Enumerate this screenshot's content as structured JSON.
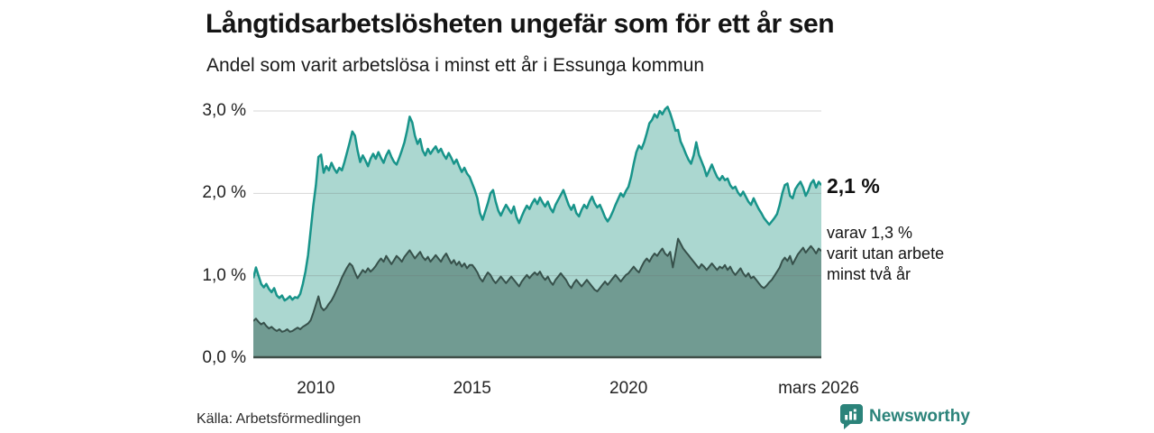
{
  "header": {
    "title": "Långtidsarbetslösheten ungefär som för ett år sen",
    "subtitle": "Andel som varit arbetslösa i minst ett år i Essunga kommun"
  },
  "annotations": {
    "total_label": "2,1 %",
    "subset_lines": [
      "varav 1,3 %",
      "varit utan arbete",
      "minst två år"
    ]
  },
  "footer": {
    "source": "Källa: Arbetsförmedlingen",
    "brand": "Newsworthy",
    "brand_icon": "newsworthy-chart-bubble-icon"
  },
  "colors": {
    "teal_line": "#18948a",
    "teal_fill": "#abd7d0",
    "dark_line": "#37514b",
    "dark_fill": "#719b92",
    "grid": "#9a9a9a",
    "axis": "#3f4e48",
    "brand": "#2b837a",
    "text": "#1a1a1a"
  },
  "chart_data": {
    "type": "area",
    "title": "Långtidsarbetslösheten ungefär som för ett år sen",
    "subtitle": "Andel som varit arbetslösa i minst ett år i Essunga kommun",
    "xlabel": "",
    "ylabel": "",
    "unit": "%",
    "xlim": [
      2008.0,
      2026.1667
    ],
    "ylim": [
      0,
      3.2
    ],
    "grid": "horizontal",
    "legend_position": "right-of-line-end",
    "x_start": 2008.0,
    "x_step": 0.0833333,
    "x_ticks": [
      {
        "label": "2010",
        "t": 2010.0
      },
      {
        "label": "2015",
        "t": 2015.0
      },
      {
        "label": "2020",
        "t": 2020.0
      },
      {
        "label": "mars 2026",
        "t": 2026.1667
      }
    ],
    "y_ticks": [
      {
        "label": "0,0 %",
        "v": 0.0
      },
      {
        "label": "1,0 %",
        "v": 1.0
      },
      {
        "label": "2,0 %",
        "v": 2.0
      },
      {
        "label": "3,0 %",
        "v": 3.0
      }
    ],
    "series": [
      {
        "name": "Andel som varit arbetslösa i minst ett år",
        "end_label": "2,1 %",
        "end_value": 2.1,
        "line_color": "#18948a",
        "fill_color": "#abd7d0",
        "line_width": 2.5,
        "values": [
          0.97,
          1.1,
          1.0,
          0.9,
          0.86,
          0.9,
          0.84,
          0.8,
          0.85,
          0.76,
          0.73,
          0.76,
          0.7,
          0.72,
          0.75,
          0.71,
          0.74,
          0.73,
          0.78,
          0.9,
          1.05,
          1.25,
          1.55,
          1.85,
          2.1,
          2.44,
          2.47,
          2.25,
          2.33,
          2.28,
          2.37,
          2.3,
          2.25,
          2.31,
          2.28,
          2.38,
          2.5,
          2.62,
          2.75,
          2.7,
          2.52,
          2.38,
          2.46,
          2.4,
          2.33,
          2.42,
          2.48,
          2.42,
          2.5,
          2.43,
          2.37,
          2.46,
          2.52,
          2.44,
          2.38,
          2.35,
          2.43,
          2.52,
          2.62,
          2.76,
          2.93,
          2.86,
          2.7,
          2.6,
          2.66,
          2.52,
          2.46,
          2.54,
          2.48,
          2.53,
          2.57,
          2.5,
          2.54,
          2.47,
          2.42,
          2.49,
          2.43,
          2.36,
          2.41,
          2.33,
          2.26,
          2.31,
          2.24,
          2.2,
          2.12,
          2.04,
          1.94,
          1.76,
          1.68,
          1.78,
          1.88,
          2.0,
          2.04,
          1.9,
          1.79,
          1.73,
          1.8,
          1.86,
          1.81,
          1.76,
          1.84,
          1.71,
          1.64,
          1.72,
          1.79,
          1.85,
          1.81,
          1.88,
          1.93,
          1.87,
          1.95,
          1.89,
          1.84,
          1.9,
          1.82,
          1.77,
          1.86,
          1.92,
          1.98,
          2.04,
          1.95,
          1.86,
          1.8,
          1.86,
          1.76,
          1.72,
          1.8,
          1.86,
          1.82,
          1.9,
          1.96,
          1.88,
          1.83,
          1.86,
          1.79,
          1.71,
          1.66,
          1.71,
          1.78,
          1.86,
          1.93,
          2.0,
          1.96,
          2.03,
          2.08,
          2.2,
          2.36,
          2.5,
          2.58,
          2.54,
          2.62,
          2.73,
          2.85,
          2.89,
          2.96,
          2.92,
          3.0,
          2.96,
          3.02,
          3.05,
          2.97,
          2.87,
          2.76,
          2.77,
          2.63,
          2.56,
          2.48,
          2.41,
          2.36,
          2.46,
          2.62,
          2.47,
          2.39,
          2.31,
          2.21,
          2.28,
          2.35,
          2.27,
          2.2,
          2.16,
          2.21,
          2.16,
          2.18,
          2.1,
          2.06,
          2.08,
          2.01,
          1.97,
          2.02,
          1.96,
          1.9,
          1.86,
          1.94,
          1.87,
          1.81,
          1.76,
          1.7,
          1.66,
          1.62,
          1.66,
          1.7,
          1.75,
          1.86,
          2.0,
          2.1,
          2.12,
          1.97,
          1.94,
          2.05,
          2.1,
          2.14,
          2.07,
          1.97,
          2.03,
          2.12,
          2.16,
          2.07,
          2.14,
          2.1
        ]
      },
      {
        "name": "varav utan arbete minst två år",
        "end_label": "varav 1,3 % varit utan arbete minst två år",
        "end_value": 1.3,
        "line_color": "#37514b",
        "fill_color": "#719b92",
        "line_width": 2,
        "values": [
          0.45,
          0.48,
          0.44,
          0.41,
          0.43,
          0.39,
          0.36,
          0.38,
          0.35,
          0.33,
          0.35,
          0.32,
          0.33,
          0.35,
          0.32,
          0.33,
          0.35,
          0.37,
          0.35,
          0.38,
          0.4,
          0.42,
          0.46,
          0.55,
          0.65,
          0.75,
          0.62,
          0.58,
          0.61,
          0.66,
          0.7,
          0.76,
          0.83,
          0.9,
          0.98,
          1.04,
          1.1,
          1.15,
          1.12,
          1.04,
          0.97,
          1.02,
          1.07,
          1.04,
          1.09,
          1.05,
          1.08,
          1.12,
          1.17,
          1.21,
          1.17,
          1.24,
          1.19,
          1.14,
          1.19,
          1.24,
          1.21,
          1.17,
          1.23,
          1.27,
          1.31,
          1.26,
          1.21,
          1.25,
          1.29,
          1.23,
          1.19,
          1.23,
          1.17,
          1.21,
          1.25,
          1.21,
          1.17,
          1.23,
          1.27,
          1.21,
          1.15,
          1.19,
          1.13,
          1.17,
          1.11,
          1.15,
          1.09,
          1.13,
          1.13,
          1.09,
          1.04,
          0.97,
          0.93,
          0.99,
          1.04,
          1.01,
          0.95,
          0.91,
          0.95,
          0.99,
          0.95,
          0.91,
          0.95,
          0.99,
          0.95,
          0.91,
          0.87,
          0.93,
          0.97,
          1.01,
          0.97,
          1.01,
          1.04,
          1.01,
          1.05,
          0.99,
          0.95,
          0.99,
          0.93,
          0.89,
          0.95,
          0.99,
          1.03,
          0.99,
          0.95,
          0.89,
          0.85,
          0.91,
          0.95,
          0.91,
          0.87,
          0.91,
          0.95,
          0.91,
          0.87,
          0.83,
          0.81,
          0.85,
          0.89,
          0.93,
          0.89,
          0.93,
          0.97,
          1.01,
          0.97,
          0.93,
          0.97,
          1.01,
          1.03,
          1.07,
          1.11,
          1.07,
          1.04,
          1.11,
          1.17,
          1.21,
          1.17,
          1.23,
          1.27,
          1.24,
          1.29,
          1.33,
          1.27,
          1.24,
          1.29,
          1.1,
          1.27,
          1.45,
          1.39,
          1.33,
          1.29,
          1.25,
          1.21,
          1.17,
          1.13,
          1.09,
          1.14,
          1.11,
          1.07,
          1.11,
          1.15,
          1.11,
          1.07,
          1.11,
          1.09,
          1.13,
          1.07,
          1.11,
          1.05,
          1.01,
          1.05,
          1.09,
          1.03,
          0.99,
          1.03,
          0.97,
          0.99,
          0.95,
          0.91,
          0.87,
          0.85,
          0.88,
          0.92,
          0.95,
          1.0,
          1.05,
          1.1,
          1.18,
          1.22,
          1.18,
          1.24,
          1.14,
          1.2,
          1.26,
          1.3,
          1.34,
          1.28,
          1.32,
          1.36,
          1.32,
          1.27,
          1.33,
          1.3
        ]
      }
    ]
  }
}
